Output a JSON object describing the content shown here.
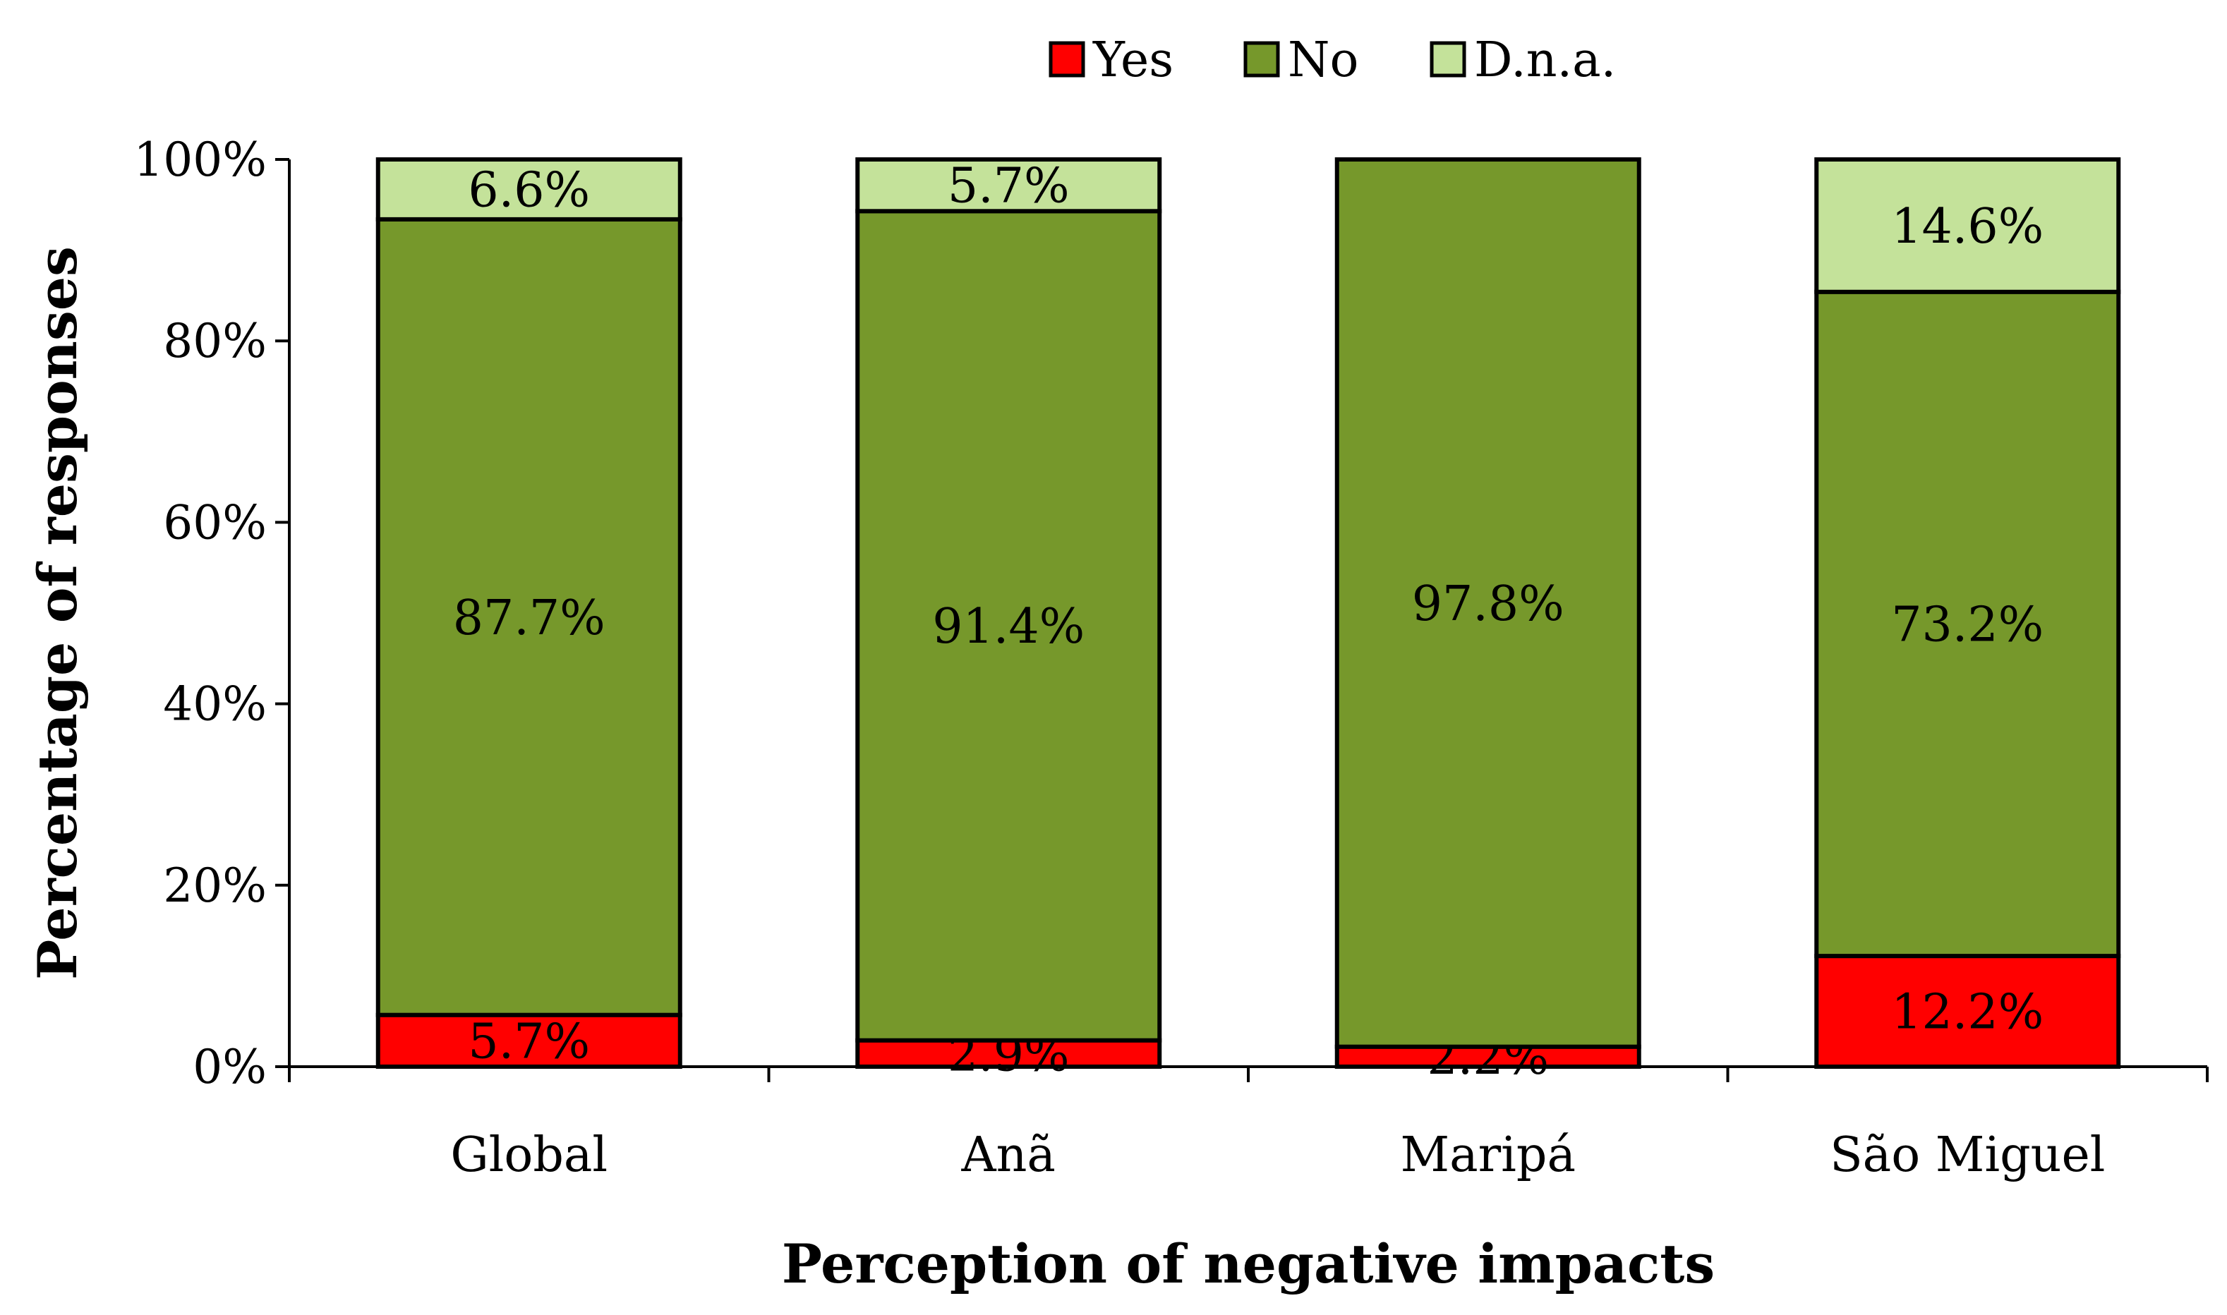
{
  "chart_data": {
    "type": "bar",
    "stacked": true,
    "title": "",
    "xlabel": "Perception of negative impacts",
    "ylabel": "Percentage of responses",
    "ylim": [
      0,
      100
    ],
    "yticks": [
      0,
      20,
      40,
      60,
      80,
      100
    ],
    "ytick_labels": [
      "0%",
      "20%",
      "40%",
      "60%",
      "80%",
      "100%"
    ],
    "categories": [
      "Global",
      "Anã",
      "Maripá",
      "São Miguel"
    ],
    "legend_position": "top-center",
    "series": [
      {
        "name": "Yes",
        "color": "#ff0000",
        "values": [
          5.7,
          2.9,
          2.2,
          12.2
        ],
        "labels": [
          "5.7%",
          "2.9%",
          "2.2%",
          "12.2%"
        ]
      },
      {
        "name": "No",
        "color": "#76982b",
        "values": [
          87.7,
          91.4,
          97.8,
          73.2
        ],
        "labels": [
          "87.7%",
          "91.4%",
          "97.8%",
          "73.2%"
        ]
      },
      {
        "name": "D.n.a.",
        "color": "#c4e29a",
        "values": [
          6.6,
          5.7,
          0,
          14.6
        ],
        "labels": [
          "6.6%",
          "5.7%",
          "",
          "14.6%"
        ]
      }
    ]
  }
}
